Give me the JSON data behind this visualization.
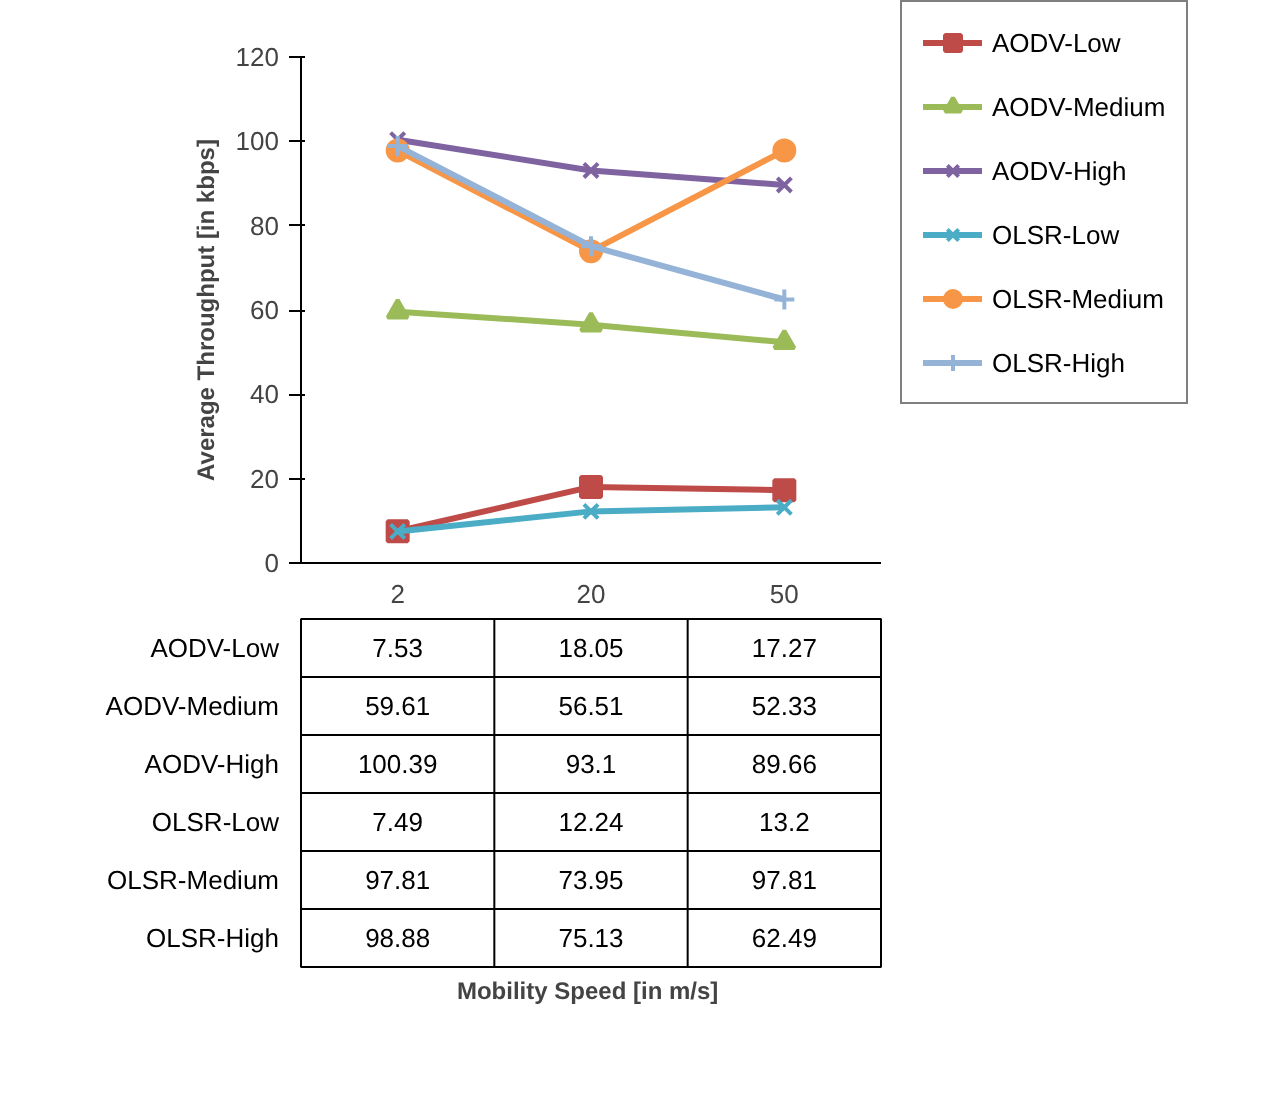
{
  "chart_data": {
    "type": "line",
    "annotations": [
      "Mobility Speed  [in m/s]"
    ],
    "ylabel": "Average Throughput [in kbps]",
    "categories": [
      "2",
      "20",
      "50"
    ],
    "ylim": [
      0,
      120
    ],
    "yticks": [
      0,
      20,
      40,
      60,
      80,
      100,
      120
    ],
    "grid": false,
    "legend": "right",
    "data_labels": true,
    "series": [
      {
        "name": "AODV-Low",
        "color": "#be4b48",
        "marker": "square",
        "values": [
          7.53,
          18.05,
          17.27
        ]
      },
      {
        "name": "AODV-Medium",
        "color": "#9bbb59",
        "marker": "triangle",
        "values": [
          59.61,
          56.51,
          52.33
        ]
      },
      {
        "name": "AODV-High",
        "color": "#7f63a1",
        "marker": "cross",
        "values": [
          100.39,
          93.1,
          89.66
        ]
      },
      {
        "name": "OLSR-Low",
        "color": "#4bacc6",
        "marker": "cross",
        "values": [
          7.49,
          12.24,
          13.2
        ]
      },
      {
        "name": "OLSR-Medium",
        "color": "#f79646",
        "marker": "circle",
        "values": [
          97.81,
          73.95,
          97.81
        ]
      },
      {
        "name": "OLSR-High",
        "color": "#95b3d7",
        "marker": "plus",
        "values": [
          98.88,
          75.13,
          62.49
        ]
      }
    ]
  }
}
